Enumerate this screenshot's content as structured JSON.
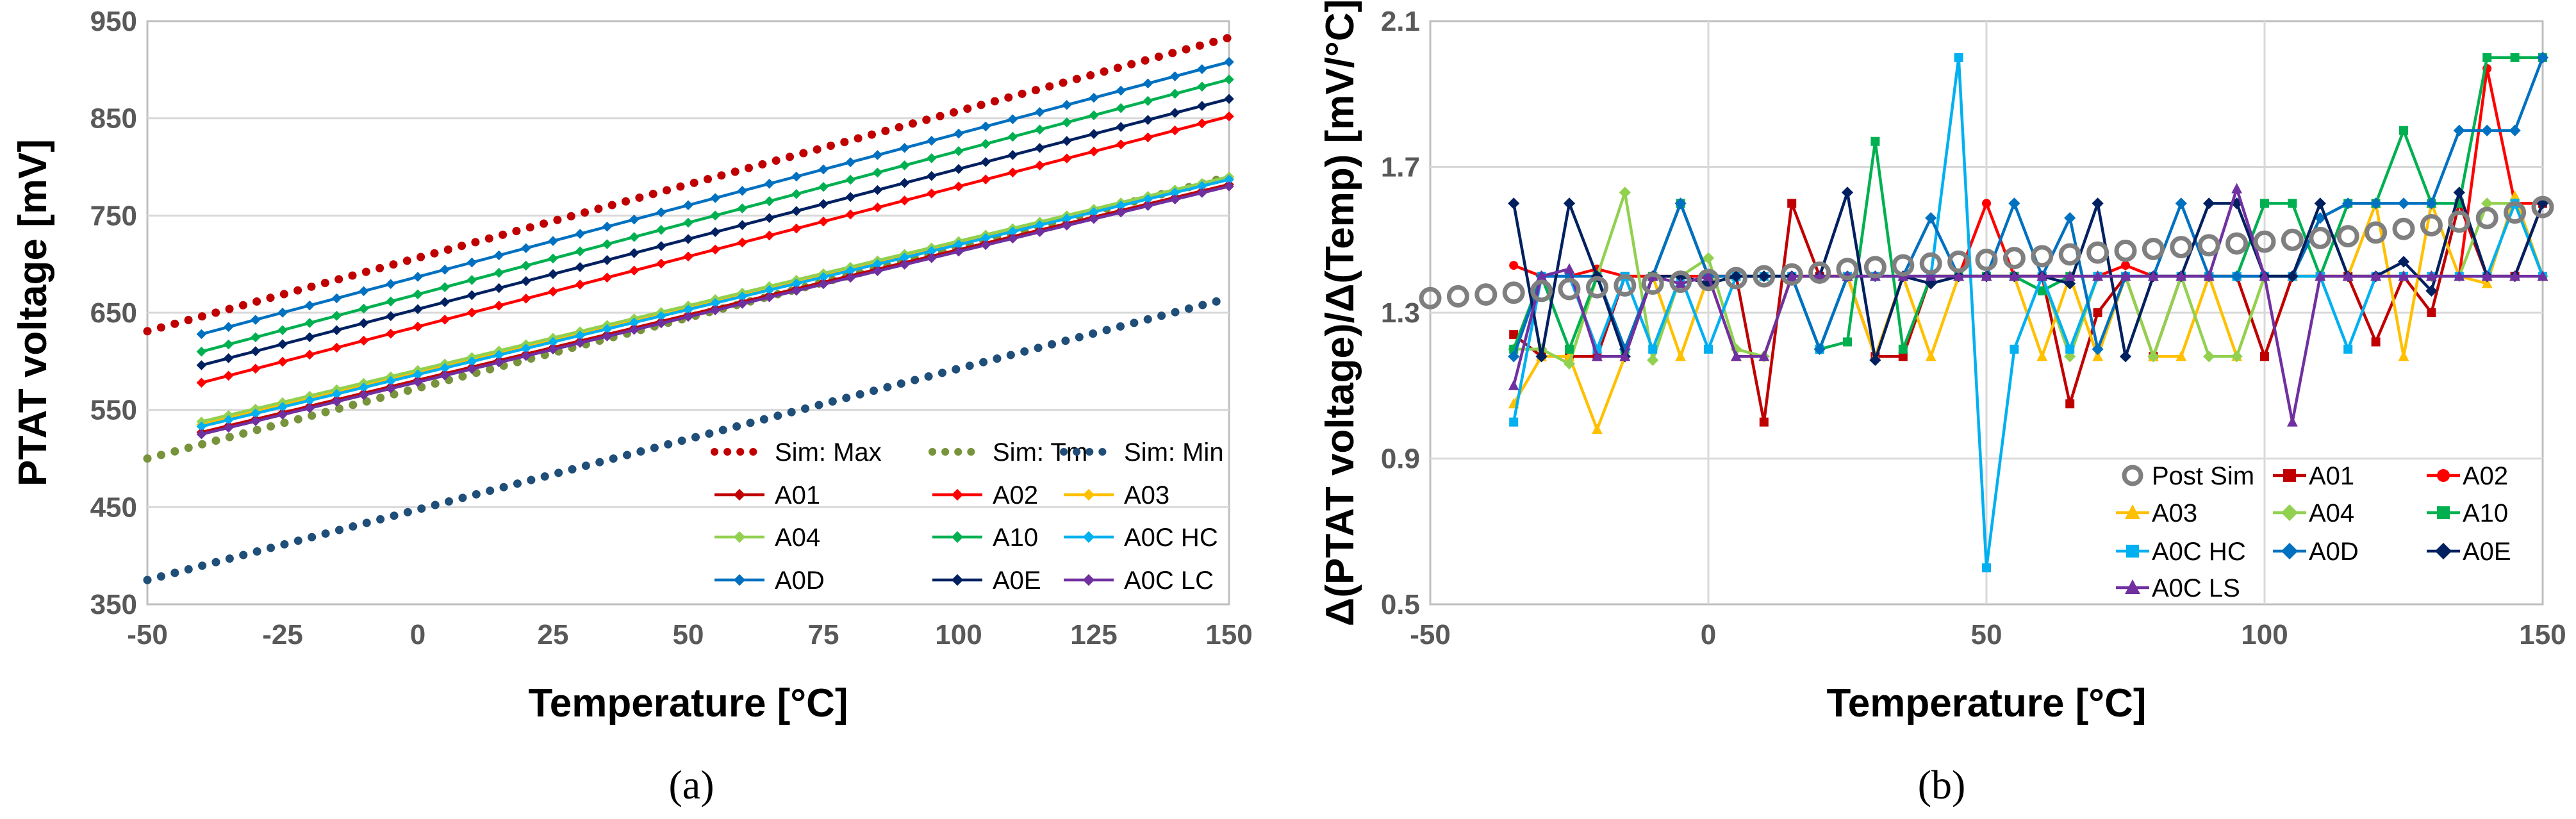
{
  "chart_data": [
    {
      "type": "line",
      "panel": "a",
      "caption": "(a)",
      "xlabel": "Temperature [°C]",
      "ylabel": "PTAT voltage [mV]",
      "xlim": [
        -50,
        150
      ],
      "ylim": [
        350,
        950
      ],
      "x_ticks": [
        -50,
        -25,
        0,
        25,
        50,
        75,
        100,
        125,
        150
      ],
      "y_ticks": [
        350,
        450,
        550,
        650,
        750,
        850,
        950
      ],
      "legend_position": "bottom-right",
      "series": [
        {
          "name": "Sim: Max",
          "style": "dotted",
          "color": "#c00000",
          "x": [
            -50,
            150
          ],
          "y": [
            631,
            933
          ]
        },
        {
          "name": "Sim: Tm",
          "style": "dotted",
          "color": "#77933c",
          "x": [
            -50,
            150
          ],
          "y": [
            500,
            790
          ]
        },
        {
          "name": "Sim: Min",
          "style": "dotted",
          "color": "#1f4e79",
          "x": [
            -50,
            150
          ],
          "y": [
            375,
            665
          ]
        },
        {
          "name": "A01",
          "style": "marker",
          "color": "#c00000",
          "x": [
            -40,
            150
          ],
          "y": [
            527,
            782
          ]
        },
        {
          "name": "A02",
          "style": "marker",
          "color": "#ff0000",
          "x": [
            -40,
            150
          ],
          "y": [
            578,
            852
          ]
        },
        {
          "name": "A03",
          "style": "marker",
          "color": "#ffc000",
          "x": [
            -40,
            150
          ],
          "y": [
            535,
            788
          ]
        },
        {
          "name": "A04",
          "style": "marker",
          "color": "#92d050",
          "x": [
            -40,
            150
          ],
          "y": [
            538,
            790
          ]
        },
        {
          "name": "A10",
          "style": "marker",
          "color": "#00b050",
          "x": [
            -40,
            150
          ],
          "y": [
            610,
            890
          ]
        },
        {
          "name": "A0C HC",
          "style": "marker",
          "color": "#00b0f0",
          "x": [
            -40,
            150
          ],
          "y": [
            533,
            787
          ]
        },
        {
          "name": "A0D",
          "style": "marker",
          "color": "#0070c0",
          "x": [
            -40,
            150
          ],
          "y": [
            628,
            908
          ]
        },
        {
          "name": "A0E",
          "style": "marker",
          "color": "#002060",
          "x": [
            -40,
            150
          ],
          "y": [
            596,
            870
          ]
        },
        {
          "name": "A0C LC",
          "style": "marker",
          "color": "#7030a0",
          "x": [
            -40,
            150
          ],
          "y": [
            525,
            780
          ]
        }
      ]
    },
    {
      "type": "line",
      "panel": "b",
      "caption": "(b)",
      "xlabel": "Temperature [°C]",
      "ylabel": "Δ(PTAT voltage)/Δ(Temp) [mV/°C]",
      "xlim": [
        -50,
        150
      ],
      "ylim": [
        0.5,
        2.1
      ],
      "x_ticks": [
        -50,
        0,
        50,
        100,
        150
      ],
      "y_ticks": [
        0.5,
        0.9,
        1.3,
        1.7,
        2.1
      ],
      "legend_position": "bottom-right",
      "x": [
        -35,
        -30,
        -25,
        -20,
        -15,
        -10,
        -5,
        0,
        5,
        10,
        15,
        20,
        25,
        30,
        35,
        40,
        45,
        50,
        55,
        60,
        65,
        70,
        75,
        80,
        85,
        90,
        95,
        100,
        105,
        110,
        115,
        120,
        125,
        130,
        135,
        140,
        145,
        150
      ],
      "post_sim": {
        "name": "Post Sim",
        "x": [
          -50,
          -45,
          -40,
          -35,
          -30,
          -25,
          -20,
          -15,
          -10,
          -5,
          0,
          5,
          10,
          15,
          20,
          25,
          30,
          35,
          40,
          45,
          50,
          55,
          60,
          65,
          70,
          75,
          80,
          85,
          90,
          95,
          100,
          105,
          110,
          115,
          120,
          125,
          130,
          135,
          140,
          145,
          150
        ],
        "y": [
          1.34,
          1.345,
          1.35,
          1.355,
          1.36,
          1.365,
          1.37,
          1.375,
          1.38,
          1.385,
          1.39,
          1.395,
          1.4,
          1.405,
          1.41,
          1.42,
          1.425,
          1.43,
          1.435,
          1.44,
          1.445,
          1.45,
          1.455,
          1.46,
          1.465,
          1.47,
          1.475,
          1.48,
          1.485,
          1.49,
          1.495,
          1.5,
          1.505,
          1.51,
          1.52,
          1.53,
          1.54,
          1.55,
          1.56,
          1.575,
          1.59
        ]
      },
      "series": [
        {
          "name": "A01",
          "color": "#c00000",
          "marker": "square",
          "y": [
            1.24,
            1.18,
            1.18,
            1.18,
            1.4,
            1.4,
            1.6,
            1.4,
            1.4,
            1.0,
            1.6,
            1.4,
            1.4,
            1.18,
            1.18,
            1.4,
            1.4,
            1.4,
            1.4,
            1.4,
            1.05,
            1.3,
            1.4,
            1.18,
            1.4,
            1.4,
            1.4,
            1.18,
            1.4,
            1.4,
            1.4,
            1.22,
            1.4,
            1.3,
            1.6,
            1.4,
            1.4,
            1.6
          ]
        },
        {
          "name": "A02",
          "color": "#ff0000",
          "marker": "circle",
          "y": [
            1.43,
            1.4,
            1.4,
            1.42,
            1.4,
            1.4,
            1.4,
            1.4,
            1.4,
            1.4,
            1.4,
            1.4,
            1.4,
            1.4,
            1.4,
            1.4,
            1.4,
            1.6,
            1.4,
            1.4,
            1.4,
            1.4,
            1.43,
            1.4,
            1.4,
            1.4,
            1.4,
            1.4,
            1.4,
            1.4,
            1.4,
            1.4,
            1.4,
            1.4,
            1.4,
            1.97,
            1.6,
            1.6
          ]
        },
        {
          "name": "A03",
          "color": "#ffc000",
          "marker": "triangle",
          "y": [
            1.05,
            1.18,
            1.18,
            0.98,
            1.18,
            1.4,
            1.18,
            1.4,
            1.18,
            1.18,
            1.4,
            1.4,
            1.4,
            1.18,
            1.4,
            1.18,
            1.4,
            1.4,
            1.4,
            1.18,
            1.4,
            1.18,
            1.4,
            1.18,
            1.18,
            1.4,
            1.18,
            1.4,
            1.4,
            1.4,
            1.4,
            1.6,
            1.18,
            1.6,
            1.4,
            1.38,
            1.62,
            1.4
          ]
        },
        {
          "name": "A04",
          "color": "#92d050",
          "marker": "diamond",
          "y": [
            1.2,
            1.2,
            1.16,
            1.4,
            1.63,
            1.17,
            1.4,
            1.45,
            1.2,
            1.18,
            1.4,
            1.2,
            1.4,
            1.4,
            1.4,
            1.4,
            1.4,
            1.4,
            1.4,
            1.4,
            1.18,
            1.4,
            1.4,
            1.18,
            1.4,
            1.18,
            1.18,
            1.4,
            1.4,
            1.4,
            1.4,
            1.4,
            1.4,
            1.4,
            1.4,
            1.6,
            1.6,
            1.4
          ]
        },
        {
          "name": "A10",
          "color": "#00b050",
          "marker": "square",
          "y": [
            1.2,
            1.4,
            1.2,
            1.4,
            1.2,
            1.4,
            1.6,
            1.4,
            1.4,
            1.4,
            1.4,
            1.2,
            1.22,
            1.77,
            1.2,
            1.4,
            1.4,
            1.4,
            1.4,
            1.36,
            1.4,
            1.4,
            1.4,
            1.4,
            1.4,
            1.4,
            1.4,
            1.6,
            1.6,
            1.4,
            1.6,
            1.6,
            1.8,
            1.6,
            1.6,
            2.0,
            2.0,
            2.0
          ]
        },
        {
          "name": "A0C HC",
          "color": "#00b0f0",
          "marker": "square",
          "y": [
            1.0,
            1.4,
            1.4,
            1.2,
            1.4,
            1.2,
            1.4,
            1.2,
            1.4,
            1.4,
            1.4,
            1.2,
            1.4,
            1.4,
            1.4,
            1.4,
            2.0,
            0.6,
            1.2,
            1.4,
            1.2,
            1.4,
            1.4,
            1.4,
            1.4,
            1.4,
            1.4,
            1.4,
            1.4,
            1.4,
            1.2,
            1.4,
            1.4,
            1.4,
            1.4,
            1.4,
            1.6,
            1.4
          ]
        },
        {
          "name": "A0D",
          "color": "#0070c0",
          "marker": "diamond",
          "y": [
            1.18,
            1.4,
            1.4,
            1.4,
            1.2,
            1.4,
            1.6,
            1.4,
            1.4,
            1.4,
            1.4,
            1.2,
            1.4,
            1.4,
            1.4,
            1.56,
            1.4,
            1.4,
            1.6,
            1.4,
            1.56,
            1.2,
            1.4,
            1.4,
            1.6,
            1.4,
            1.4,
            1.4,
            1.4,
            1.56,
            1.6,
            1.6,
            1.6,
            1.6,
            1.8,
            1.8,
            1.8,
            2.0
          ]
        },
        {
          "name": "A0E",
          "color": "#002060",
          "marker": "diamond",
          "y": [
            1.6,
            1.18,
            1.6,
            1.4,
            1.18,
            1.4,
            1.4,
            1.38,
            1.4,
            1.4,
            1.4,
            1.4,
            1.63,
            1.17,
            1.4,
            1.38,
            1.4,
            1.4,
            1.4,
            1.4,
            1.38,
            1.6,
            1.18,
            1.4,
            1.4,
            1.6,
            1.6,
            1.4,
            1.4,
            1.6,
            1.4,
            1.4,
            1.44,
            1.36,
            1.63,
            1.4,
            1.4,
            1.6
          ]
        },
        {
          "name": "A0C LS",
          "color": "#7030a0",
          "marker": "triangle",
          "y": [
            1.1,
            1.4,
            1.42,
            1.18,
            1.18,
            1.4,
            1.38,
            1.4,
            1.18,
            1.18,
            1.4,
            1.4,
            1.4,
            1.4,
            1.4,
            1.4,
            1.4,
            1.4,
            1.4,
            1.4,
            1.4,
            1.4,
            1.4,
            1.4,
            1.4,
            1.4,
            1.64,
            1.4,
            1.0,
            1.4,
            1.4,
            1.4,
            1.4,
            1.4,
            1.4,
            1.4,
            1.4,
            1.4
          ]
        }
      ]
    }
  ]
}
